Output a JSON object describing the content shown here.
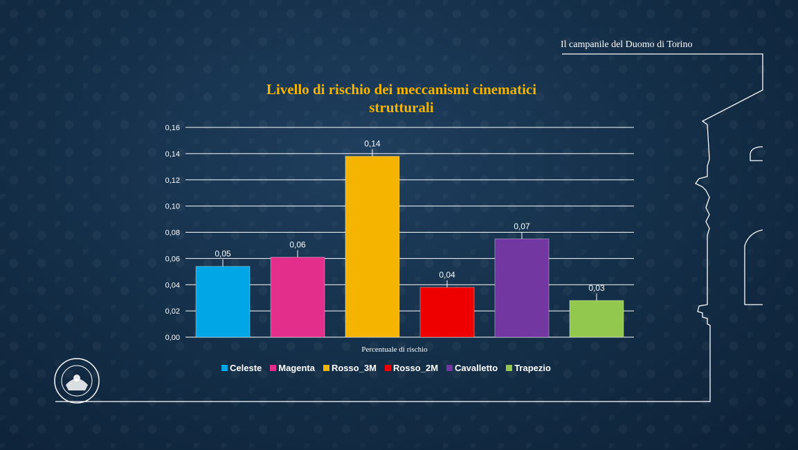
{
  "slide": {
    "header_title": "Il campanile del Duomo di Torino",
    "logo_text": "POLITECNICO DI TORINO"
  },
  "chart_data": {
    "type": "bar",
    "title": "Livello di rischio dei meccanismi cinematici strutturali",
    "title_lines": [
      "Livello di rischio dei meccanismi cinematici",
      "strutturali"
    ],
    "xlabel": "Percentuale di rischio",
    "ylabel": "",
    "ylim": [
      0,
      0.16
    ],
    "yticks": [
      0,
      0.02,
      0.04,
      0.06,
      0.08,
      0.1,
      0.12,
      0.14,
      0.16
    ],
    "ytick_labels": [
      "0,00",
      "0,02",
      "0,04",
      "0,06",
      "0,08",
      "0,10",
      "0,12",
      "0,14",
      "0,16"
    ],
    "grid": true,
    "legend_position": "bottom",
    "series": [
      {
        "name": "Celeste",
        "value": 0.054,
        "label": "0,05",
        "color": "#00a6e6"
      },
      {
        "name": "Magenta",
        "value": 0.061,
        "label": "0,06",
        "color": "#e42e8c"
      },
      {
        "name": "Rosso_3M",
        "value": 0.138,
        "label": "0,14",
        "color": "#f4b400"
      },
      {
        "name": "Rosso_2M",
        "value": 0.038,
        "label": "0,04",
        "color": "#ee0000"
      },
      {
        "name": "Cavalletto",
        "value": 0.075,
        "label": "0,07",
        "color": "#7237a0"
      },
      {
        "name": "Trapezio",
        "value": 0.028,
        "label": "0,03",
        "color": "#92c84e"
      }
    ]
  }
}
